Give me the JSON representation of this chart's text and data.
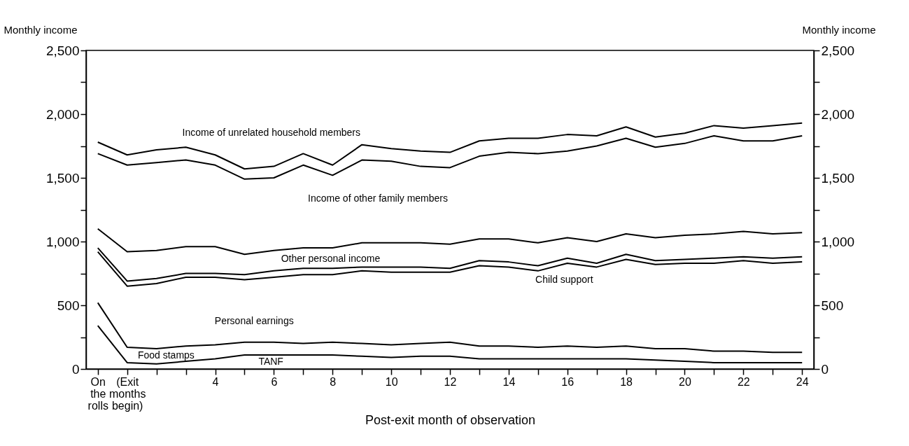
{
  "chart_data": {
    "type": "line",
    "xlabel": "Post-exit month of observation",
    "ylabel": "Monthly income",
    "y2label": "Monthly income",
    "x": [
      0,
      1,
      2,
      3,
      4,
      5,
      6,
      7,
      8,
      9,
      10,
      11,
      12,
      13,
      14,
      15,
      16,
      17,
      18,
      19,
      20,
      21,
      22,
      23,
      24
    ],
    "series": [
      {
        "color": "#000000",
        "values": [
          1780,
          1680,
          1720,
          1740,
          1680,
          1570,
          1590,
          1690,
          1600,
          1760,
          1730,
          1710,
          1700,
          1790,
          1810,
          1810,
          1840,
          1830,
          1900,
          1820,
          1850,
          1910,
          1890,
          1910,
          1930
        ]
      },
      {
        "color": "#000000",
        "values": [
          1690,
          1600,
          1620,
          1640,
          1600,
          1490,
          1500,
          1600,
          1520,
          1640,
          1630,
          1590,
          1580,
          1670,
          1700,
          1690,
          1710,
          1750,
          1810,
          1740,
          1770,
          1830,
          1790,
          1790,
          1830
        ]
      },
      {
        "color": "#000000",
        "values": [
          1100,
          920,
          930,
          960,
          960,
          900,
          930,
          950,
          950,
          990,
          990,
          990,
          980,
          1020,
          1020,
          990,
          1030,
          1000,
          1060,
          1030,
          1050,
          1060,
          1080,
          1060,
          1070
        ]
      },
      {
        "color": "#000000",
        "values": [
          950,
          690,
          710,
          750,
          750,
          740,
          770,
          790,
          790,
          800,
          800,
          800,
          790,
          850,
          840,
          810,
          870,
          830,
          900,
          850,
          860,
          870,
          880,
          870,
          880
        ]
      },
      {
        "color": "#000000",
        "values": [
          920,
          650,
          670,
          720,
          720,
          700,
          720,
          740,
          740,
          770,
          760,
          760,
          760,
          810,
          800,
          770,
          830,
          800,
          860,
          820,
          830,
          830,
          850,
          830,
          840
        ]
      },
      {
        "color": "#000000",
        "values": [
          520,
          170,
          160,
          180,
          190,
          210,
          210,
          200,
          210,
          200,
          190,
          200,
          210,
          180,
          180,
          170,
          180,
          170,
          180,
          160,
          160,
          140,
          140,
          130,
          130
        ]
      },
      {
        "color": "#000000",
        "values": [
          340,
          50,
          40,
          60,
          80,
          110,
          110,
          110,
          110,
          100,
          90,
          100,
          100,
          80,
          80,
          80,
          80,
          80,
          80,
          70,
          60,
          50,
          50,
          50,
          50
        ]
      }
    ],
    "xlim": [
      -0.4,
      24.4
    ],
    "xticks": [
      {
        "value": 0,
        "label": "On\nthe\nrolls"
      },
      {
        "value": 1,
        "label": "(Exit\nmonths\nbegin)"
      },
      {
        "value": 2,
        "label": null
      },
      {
        "value": 3,
        "label": null
      },
      4,
      {
        "value": 5,
        "label": null
      },
      6,
      {
        "value": 7,
        "label": null
      },
      8,
      {
        "value": 9,
        "label": null
      },
      10,
      {
        "value": 11,
        "label": null
      },
      12,
      {
        "value": 13,
        "label": null
      },
      14,
      {
        "value": 15,
        "label": null
      },
      16,
      {
        "value": 17,
        "label": null
      },
      18,
      {
        "value": 19,
        "label": null
      },
      20,
      {
        "value": 21,
        "label": null
      },
      22,
      {
        "value": 23,
        "label": null
      },
      24
    ],
    "ylim": [
      0,
      2500
    ],
    "yticks": [
      {
        "value": 0,
        "label": "0"
      },
      {
        "value": 250,
        "label": null
      },
      {
        "value": 500,
        "label": "500"
      },
      {
        "value": 750,
        "label": null
      },
      {
        "value": 1000,
        "label": "1,000"
      },
      {
        "value": 1250,
        "label": null
      },
      {
        "value": 1500,
        "label": "1,500"
      },
      {
        "value": 1750,
        "label": null
      },
      {
        "value": 2000,
        "label": "2,000"
      },
      {
        "value": 2250,
        "label": null
      },
      {
        "value": 2500,
        "label": "2,500"
      }
    ],
    "y2lim": [
      0,
      2500
    ],
    "y2ticks": [
      {
        "value": 0,
        "label": "0"
      },
      {
        "value": 250,
        "label": null
      },
      {
        "value": 500,
        "label": "500"
      },
      {
        "value": 750,
        "label": null
      },
      {
        "value": 1000,
        "label": "1,000"
      },
      {
        "value": 1250,
        "label": null
      },
      {
        "value": 1500,
        "label": "1,500"
      },
      {
        "value": 1750,
        "label": null
      },
      {
        "value": 2000,
        "label": "2,000"
      },
      {
        "value": 2250,
        "label": null
      },
      {
        "value": 2500,
        "label": "2,500"
      }
    ],
    "annotations": [
      "Income of unrelated household members",
      "Income of other family members",
      "Other personal income",
      "Child support",
      "Personal earnings",
      "Food stamps",
      "TANF"
    ],
    "grid": false,
    "marker": "none",
    "line_style": "solid"
  }
}
